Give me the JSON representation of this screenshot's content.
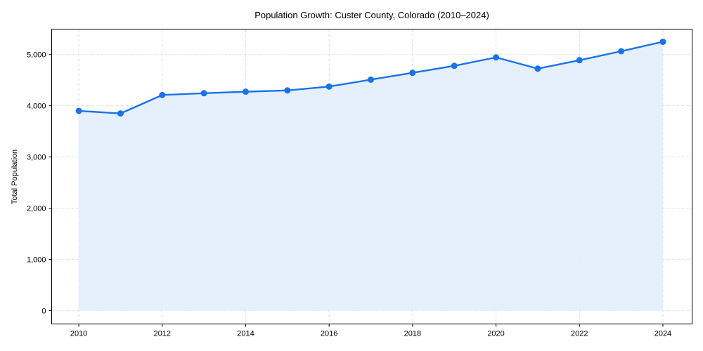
{
  "chart_data": {
    "type": "area",
    "title": "Population Growth: Custer County, Colorado (2010–2024)",
    "xlabel": "",
    "ylabel": "Total Population",
    "x": [
      2010,
      2011,
      2012,
      2013,
      2014,
      2015,
      2016,
      2017,
      2018,
      2019,
      2020,
      2021,
      2022,
      2023,
      2024
    ],
    "series": [
      {
        "name": "Total Population",
        "values": [
          3900,
          3850,
          4210,
          4245,
          4275,
          4300,
          4375,
          4510,
          4645,
          4780,
          4945,
          4725,
          4890,
          5065,
          5250
        ]
      }
    ],
    "xticks": [
      2010,
      2012,
      2014,
      2016,
      2018,
      2020,
      2022,
      2024
    ],
    "xtick_labels": [
      "2010",
      "2012",
      "2014",
      "2016",
      "2018",
      "2020",
      "2022",
      "2024"
    ],
    "yticks": [
      0,
      1000,
      2000,
      3000,
      4000,
      5000
    ],
    "ytick_labels": [
      "0",
      "1,000",
      "2,000",
      "3,000",
      "4,000",
      "5,000"
    ],
    "xlim": [
      2009.35,
      2024.7
    ],
    "ylim": [
      -262,
      5497
    ],
    "grid": true,
    "legend": null,
    "colors": {
      "line": "#1a73e8",
      "marker": "#1a73e8",
      "fill": "#e3eefd"
    }
  }
}
